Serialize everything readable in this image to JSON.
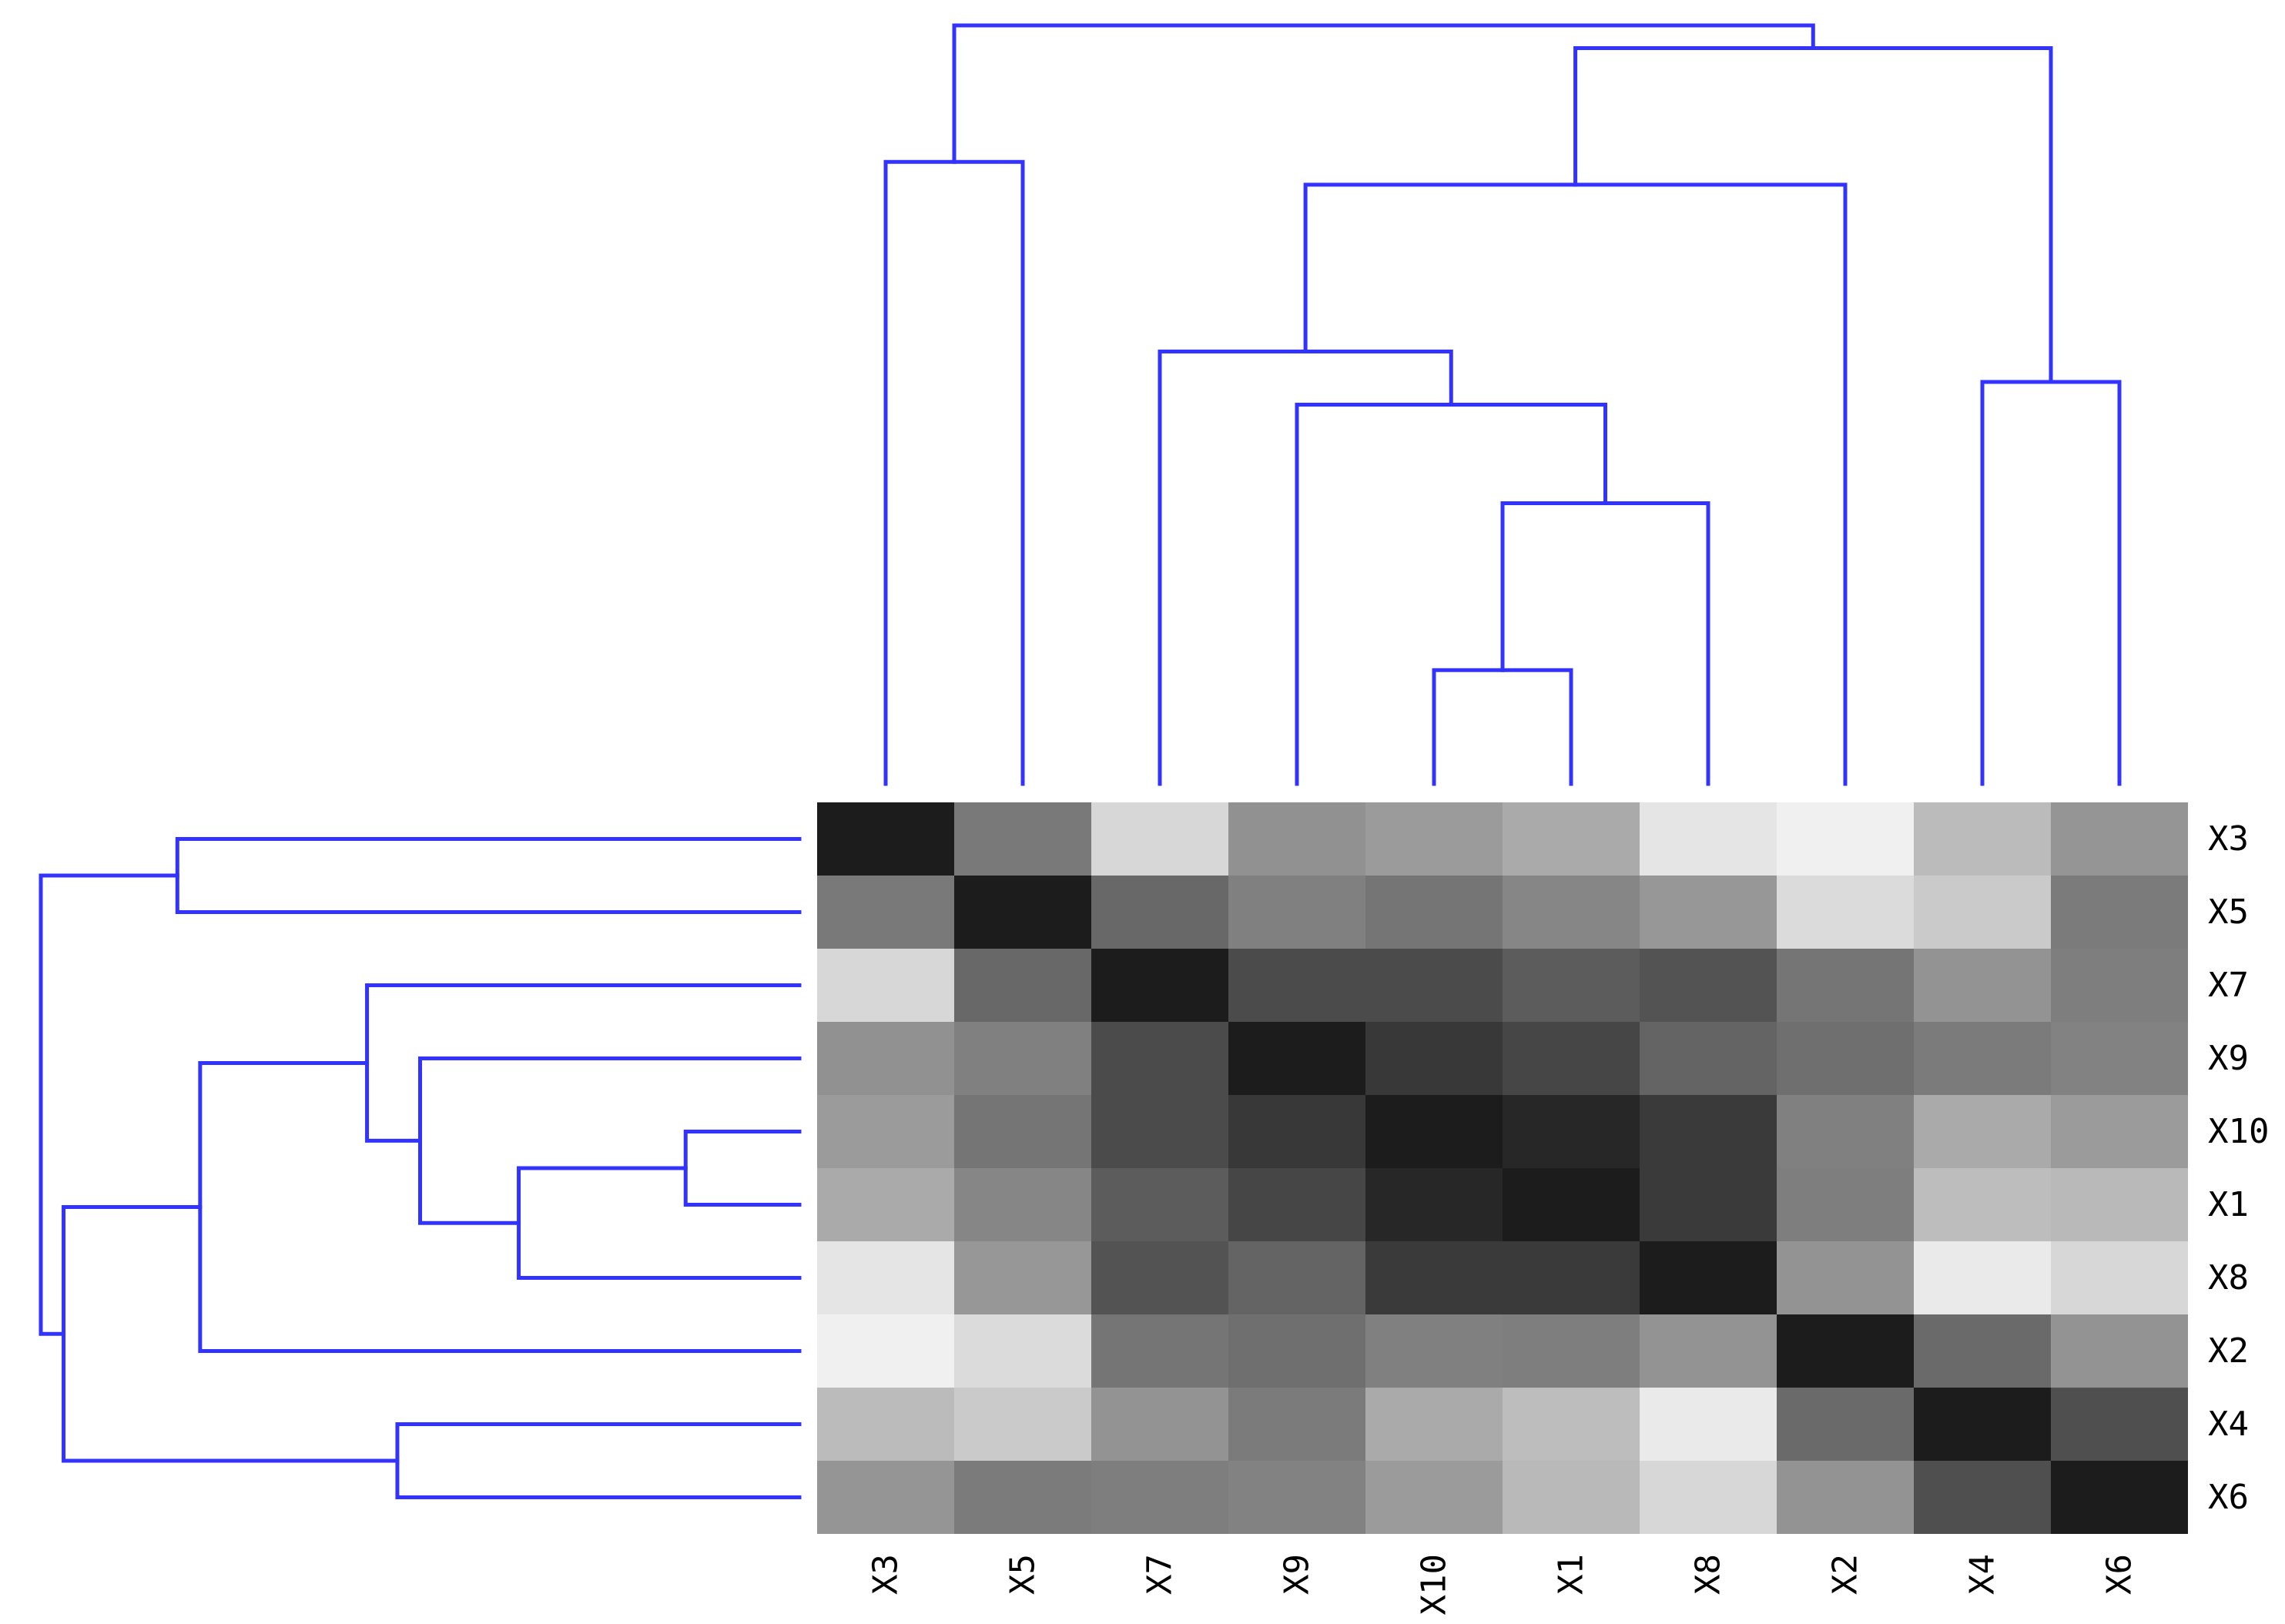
{
  "colors": {
    "dendrogram": "#3333ff",
    "background": "#ffffff",
    "scale_low": "#f0f0f0",
    "scale_high": "#1c1c1c"
  },
  "chart_data": {
    "type": "heatmap",
    "title": "",
    "xlabel": "",
    "ylabel": "",
    "rows": [
      "X3",
      "X5",
      "X7",
      "X9",
      "X10",
      "X1",
      "X8",
      "X2",
      "X4",
      "X6"
    ],
    "columns": [
      "X3",
      "X5",
      "X7",
      "X9",
      "X10",
      "X1",
      "X8",
      "X2",
      "X4",
      "X6"
    ],
    "values": [
      [
        1.0,
        0.56,
        0.12,
        0.45,
        0.4,
        0.33,
        0.05,
        0.0,
        0.25,
        0.43
      ],
      [
        0.56,
        1.0,
        0.64,
        0.53,
        0.58,
        0.5,
        0.42,
        0.1,
        0.18,
        0.55
      ],
      [
        0.12,
        0.64,
        1.0,
        0.78,
        0.78,
        0.7,
        0.74,
        0.58,
        0.44,
        0.54
      ],
      [
        0.45,
        0.53,
        0.78,
        1.0,
        0.87,
        0.8,
        0.66,
        0.61,
        0.55,
        0.52
      ],
      [
        0.4,
        0.58,
        0.78,
        0.87,
        1.0,
        0.95,
        0.86,
        0.53,
        0.33,
        0.4
      ],
      [
        0.33,
        0.5,
        0.7,
        0.8,
        0.95,
        1.0,
        0.86,
        0.54,
        0.24,
        0.26
      ],
      [
        0.05,
        0.42,
        0.74,
        0.66,
        0.86,
        0.86,
        1.0,
        0.44,
        0.03,
        0.12
      ],
      [
        0.0,
        0.1,
        0.58,
        0.61,
        0.53,
        0.54,
        0.44,
        1.0,
        0.63,
        0.44
      ],
      [
        0.25,
        0.18,
        0.44,
        0.55,
        0.33,
        0.24,
        0.03,
        0.63,
        1.0,
        0.76
      ],
      [
        0.43,
        0.55,
        0.54,
        0.52,
        0.4,
        0.26,
        0.12,
        0.44,
        0.76,
        1.0
      ]
    ],
    "color_scale": {
      "min": 0,
      "max": 1,
      "low": "#f0f0f0",
      "high": "#1c1c1c"
    },
    "dendrogram": {
      "leaves": [
        "X3",
        "X5",
        "X7",
        "X9",
        "X10",
        "X1",
        "X8",
        "X2",
        "X4",
        "X6"
      ],
      "merges": [
        {
          "a": "X10",
          "b": "X1",
          "height": 0.15
        },
        {
          "a": "node1",
          "b": "X8",
          "height": 0.37
        },
        {
          "a": "X9",
          "b": "node2",
          "height": 0.5
        },
        {
          "a": "X7",
          "b": "node3",
          "height": 0.57
        },
        {
          "a": "node4",
          "b": "X2",
          "height": 0.79
        },
        {
          "a": "X4",
          "b": "X6",
          "height": 0.53
        },
        {
          "a": "node5",
          "b": "node6",
          "height": 0.97
        },
        {
          "a": "X3",
          "b": "X5",
          "height": 0.82
        },
        {
          "a": "node8",
          "b": "node7",
          "height": 1.0
        }
      ]
    }
  }
}
